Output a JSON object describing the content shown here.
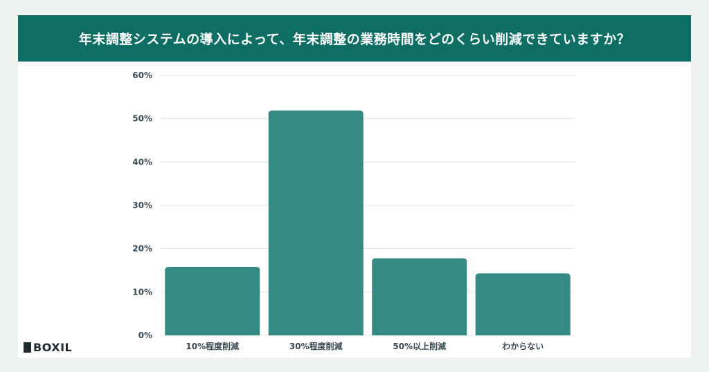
{
  "header": {
    "title": "年末調整システムの導入によって、年末調整の業務時間をどのくらい削減できていますか？"
  },
  "brand": {
    "mark": "BOXIL",
    "name": "BOXIL"
  },
  "colors": {
    "header_bg": "#0e6e63",
    "bar": "#358a84",
    "grid": "#e3e6e8",
    "axis_text": "#3b4b55",
    "page_bg": "#eef3f2"
  },
  "chart_data": {
    "type": "bar",
    "title": "年末調整システムの導入によって、年末調整の業務時間をどのくらい削減できていますか？",
    "categories": [
      "10%程度削減",
      "30%程度削減",
      "50%以上削減",
      "わからない"
    ],
    "values": [
      15.8,
      51.9,
      17.8,
      14.3
    ],
    "ylim": [
      0,
      60
    ],
    "yticks": [
      0,
      10,
      20,
      30,
      40,
      50,
      60
    ],
    "ytick_labels": [
      "0%",
      "10%",
      "20%",
      "30%",
      "40%",
      "50%",
      "60%"
    ],
    "xlabel": "",
    "ylabel": "",
    "grid": true,
    "legend": "none"
  }
}
